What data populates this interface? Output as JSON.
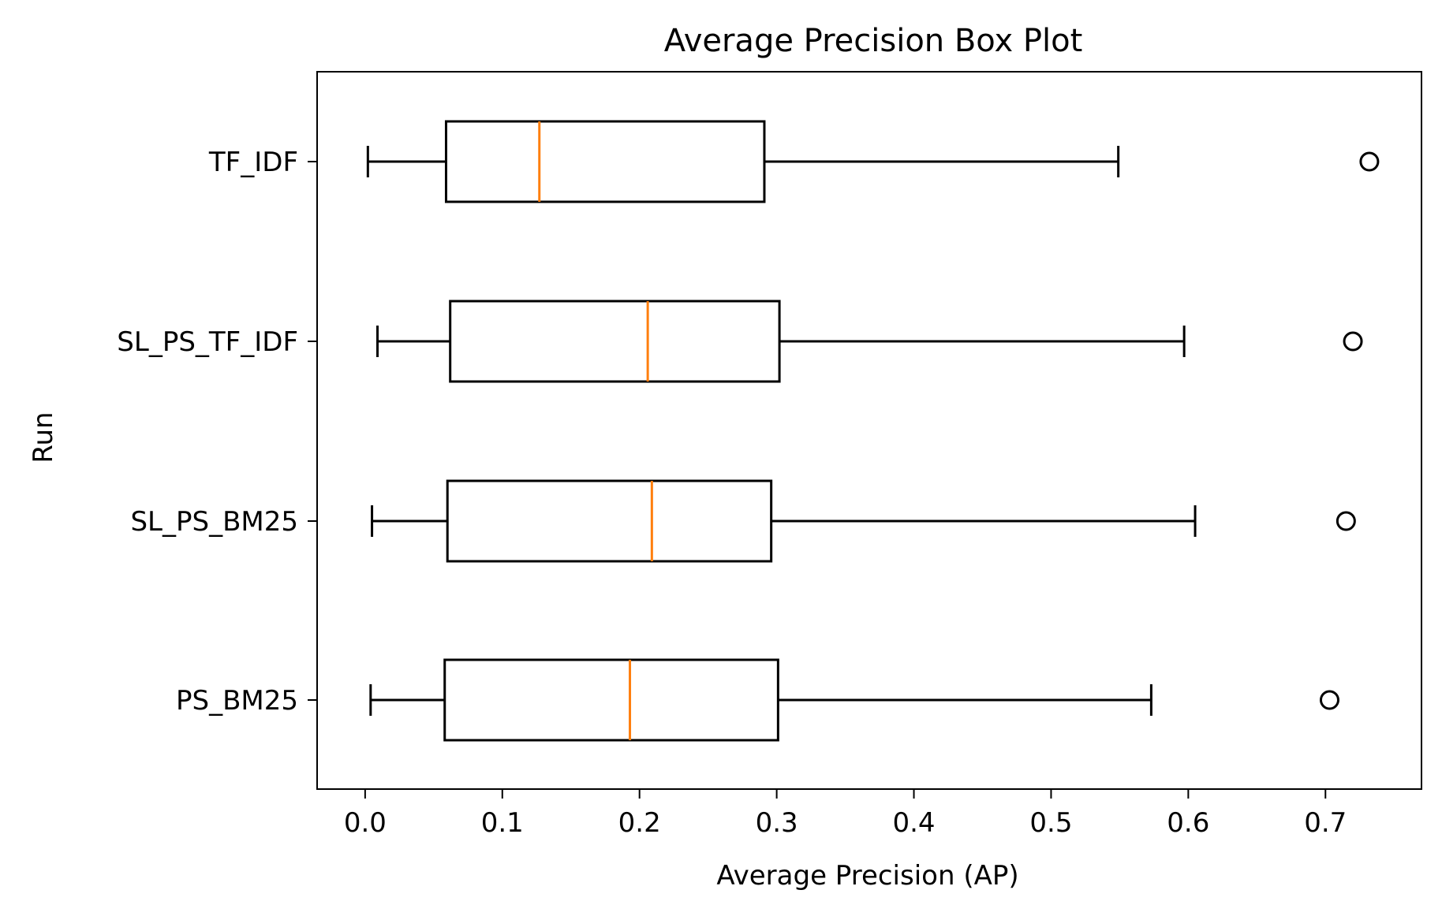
{
  "chart_data": {
    "type": "box",
    "orientation": "horizontal",
    "title": "Average Precision Box Plot",
    "xlabel": "Average Precision (AP)",
    "ylabel": "Run",
    "xlim": [
      -0.035,
      0.77
    ],
    "xticks": [
      0.0,
      0.1,
      0.2,
      0.3,
      0.4,
      0.5,
      0.6,
      0.7
    ],
    "xtick_labels": [
      "0.0",
      "0.1",
      "0.2",
      "0.3",
      "0.4",
      "0.5",
      "0.6",
      "0.7"
    ],
    "grid": false,
    "categories_top_to_bottom": [
      "TF_IDF",
      "SL_PS_TF_IDF",
      "SL_PS_BM25",
      "PS_BM25"
    ],
    "series": [
      {
        "name": "TF_IDF",
        "whisker_low": 0.002,
        "q1": 0.059,
        "median": 0.127,
        "q3": 0.291,
        "whisker_high": 0.549,
        "outliers": [
          0.732
        ]
      },
      {
        "name": "SL_PS_TF_IDF",
        "whisker_low": 0.009,
        "q1": 0.062,
        "median": 0.206,
        "q3": 0.302,
        "whisker_high": 0.597,
        "outliers": [
          0.72
        ]
      },
      {
        "name": "SL_PS_BM25",
        "whisker_low": 0.005,
        "q1": 0.06,
        "median": 0.209,
        "q3": 0.296,
        "whisker_high": 0.605,
        "outliers": [
          0.715
        ]
      },
      {
        "name": "PS_BM25",
        "whisker_low": 0.004,
        "q1": 0.058,
        "median": 0.193,
        "q3": 0.301,
        "whisker_high": 0.573,
        "outliers": [
          0.703
        ]
      }
    ],
    "colors": {
      "box": "#000000",
      "median": "#ff7f0e",
      "outlier": "#000000",
      "background": "#ffffff"
    }
  }
}
